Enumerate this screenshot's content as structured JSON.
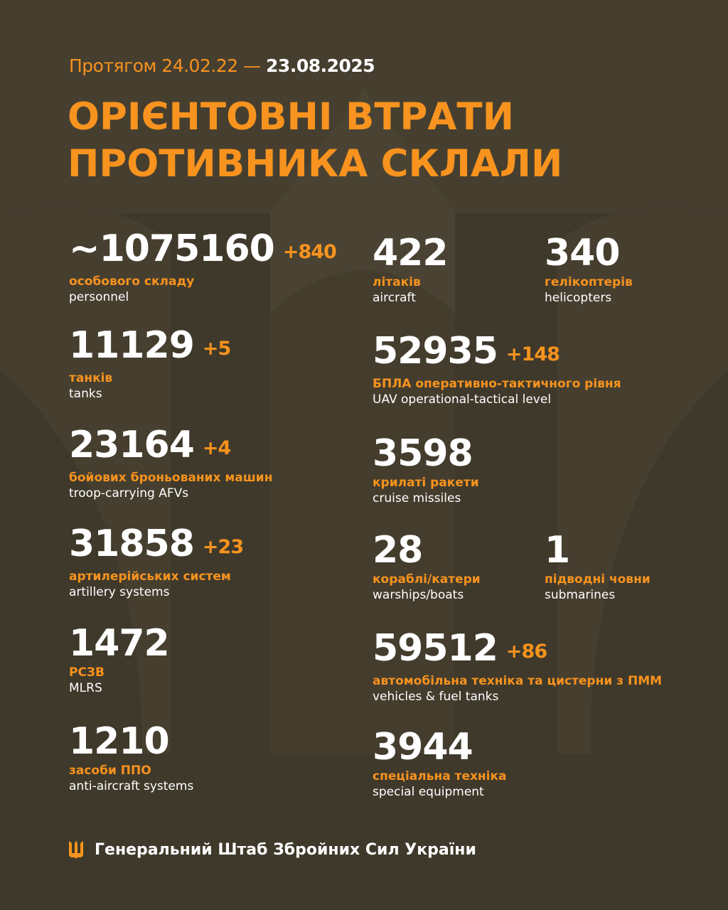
{
  "header": {
    "period_prefix": "Протягом 24.02.22 —",
    "period_end": "23.08.2025",
    "title_line1": "ОРІЄНТОВНІ ВТРАТИ",
    "title_line2": "ПРОТИВНИКА СКЛАЛИ"
  },
  "stats": [
    {
      "value": "~1075160",
      "delta": "+840",
      "uk": "особового складу",
      "en": "personnel"
    },
    {
      "value": "11129",
      "delta": "+5",
      "uk": "танків",
      "en": "tanks"
    },
    {
      "value": "23164",
      "delta": "+4",
      "uk": "бойових броньованих машин",
      "en": "troop-carrying AFVs"
    },
    {
      "value": "31858",
      "delta": "+23",
      "uk": "артилерійських систем",
      "en": "artillery systems"
    },
    {
      "value": "1472",
      "delta": "",
      "uk": "РСЗВ",
      "en": "MLRS"
    },
    {
      "value": "1210",
      "delta": "",
      "uk": "засоби ППО",
      "en": "anti-aircraft systems"
    },
    {
      "value": "422",
      "delta": "",
      "uk": "літаків",
      "en": "aircraft"
    },
    {
      "value": "340",
      "delta": "",
      "uk": "гелікоптерів",
      "en": "helicopters"
    },
    {
      "value": "52935",
      "delta": "+148",
      "uk": "БПЛА оперативно-тактичного рівня",
      "en": "UAV operational-tactical level"
    },
    {
      "value": "3598",
      "delta": "",
      "uk": "крилаті ракети",
      "en": "cruise missiles"
    },
    {
      "value": "28",
      "delta": "",
      "uk": "кораблі/катери",
      "en": "warships/boats"
    },
    {
      "value": "1",
      "delta": "",
      "uk": "підводні човни",
      "en": "submarines"
    },
    {
      "value": "59512",
      "delta": "+86",
      "uk": "автомобільна техніка та цистерни з ПММ",
      "en": "vehicles & fuel tanks"
    },
    {
      "value": "3944",
      "delta": "",
      "uk": "спеціальна техніка",
      "en": "special equipment"
    }
  ],
  "footer": {
    "org": "Генеральний Штаб Збройних Сил України",
    "icon": "trident-icon"
  },
  "colors": {
    "accent": "#f7931e",
    "background": "#463f30",
    "text": "#ffffff"
  }
}
